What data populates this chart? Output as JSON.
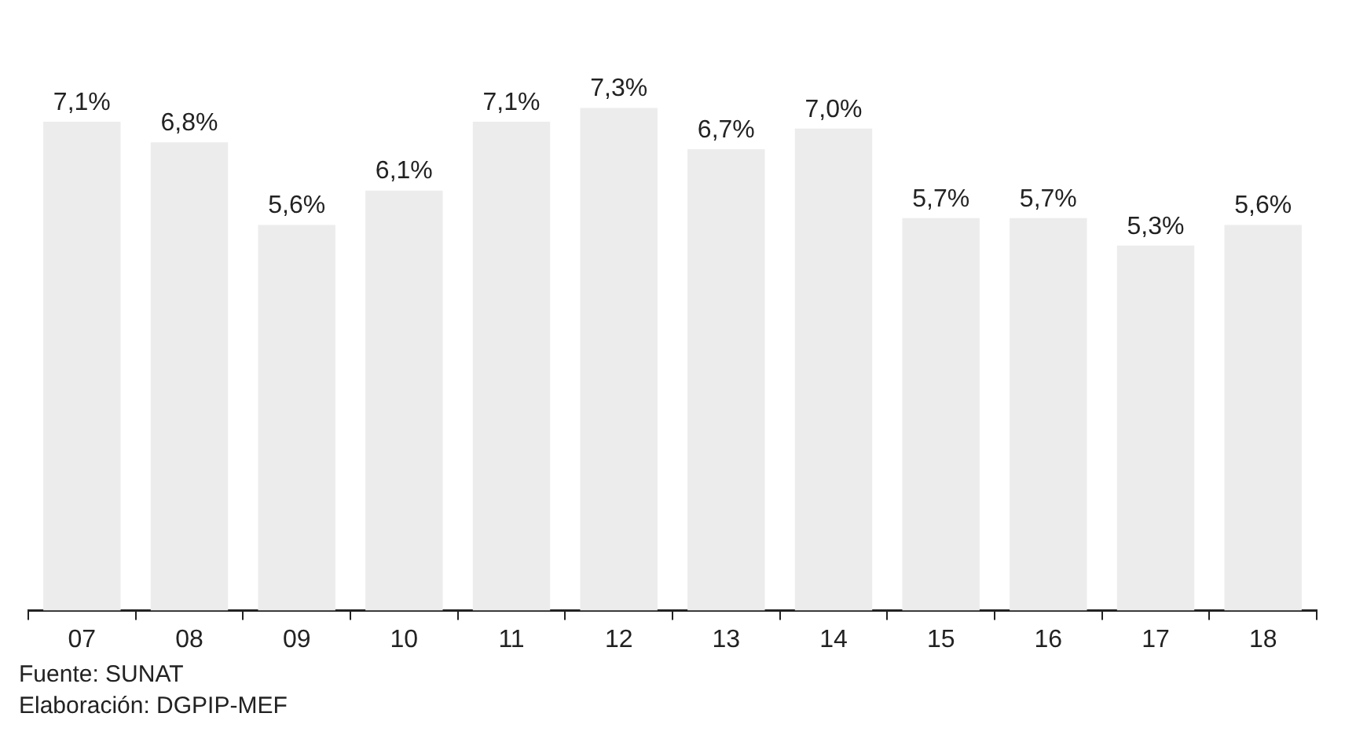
{
  "chart_data": {
    "type": "bar",
    "categories": [
      "07",
      "08",
      "09",
      "10",
      "11",
      "12",
      "13",
      "14",
      "15",
      "16",
      "17",
      "18"
    ],
    "values": [
      7.1,
      6.8,
      5.6,
      6.1,
      7.1,
      7.3,
      6.7,
      7.0,
      5.7,
      5.7,
      5.3,
      5.6
    ],
    "value_labels": [
      "7,1%",
      "6,8%",
      "5,6%",
      "6,1%",
      "7,1%",
      "7,3%",
      "6,7%",
      "7,0%",
      "5,7%",
      "5,7%",
      "5,3%",
      "5,6%"
    ],
    "color": "#ececec",
    "tick_labels": "x",
    "grid": false,
    "legend": false,
    "annotations": [
      "Fuente: SUNAT",
      "Elaboración: DGPIP-MEF"
    ]
  }
}
